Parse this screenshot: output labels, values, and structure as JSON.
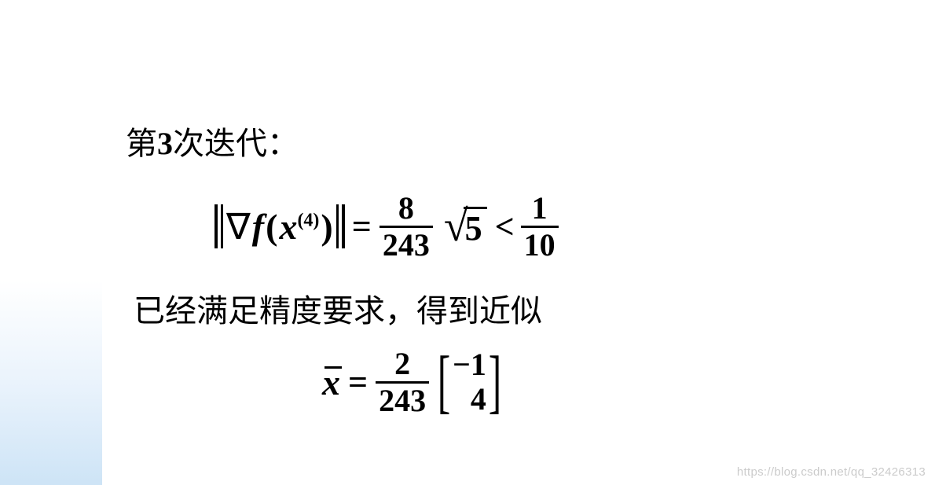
{
  "background": {
    "page_color": "#ffffff",
    "gradient_corner_color_start": "#c8e1f5",
    "gradient_corner_color_end": "#ffffff"
  },
  "text_color": "#000000",
  "font_family_cjk": "SimSun",
  "font_family_math": "Times New Roman",
  "line1": {
    "prefix": "第",
    "number": "3",
    "suffix": "次迭代：",
    "fontsize": 40
  },
  "formula1": {
    "gradient_symbol": "∇",
    "function_letter": "f",
    "open_paren": "(",
    "variable": "x",
    "superscript": "(4)",
    "close_paren": ")",
    "equals": "=",
    "fraction1": {
      "numerator": "8",
      "denominator": "243"
    },
    "sqrt_radicand": "5",
    "less_than": "<",
    "fraction2": {
      "numerator": "1",
      "denominator": "10"
    },
    "fontsize": 46,
    "fraction_fontsize": 40
  },
  "line2": {
    "text": "已经满足精度要求，得到近似",
    "fontsize": 40
  },
  "formula2": {
    "variable": "x",
    "has_bar": true,
    "equals": "=",
    "fraction": {
      "numerator": "2",
      "denominator": "243"
    },
    "vector": [
      "−1",
      "4"
    ],
    "bracket_open": "[",
    "bracket_close": "]",
    "fontsize": 46
  },
  "watermark": "https://blog.csdn.net/qq_32426313",
  "watermark_color": "rgba(160,160,160,0.55)"
}
